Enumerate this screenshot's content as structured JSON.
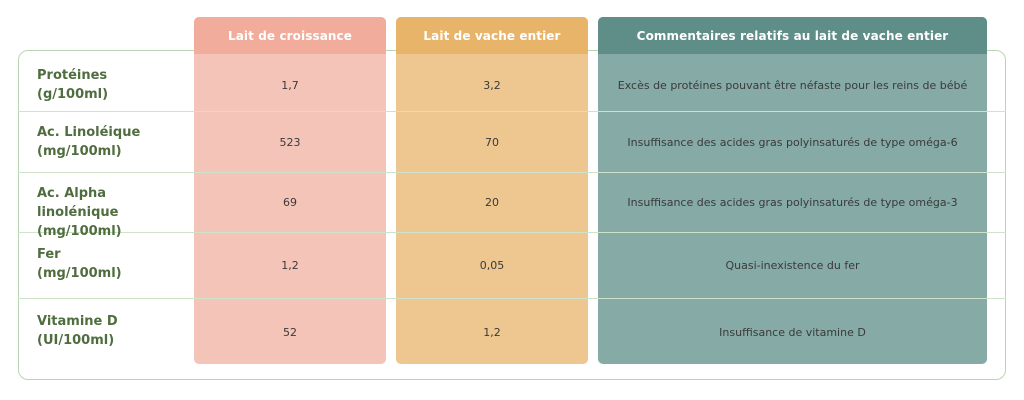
{
  "columns": {
    "a": "Lait de croissance",
    "b": "Lait de vache entier",
    "c": "Commentaires relatifs au lait de vache entier"
  },
  "rows": [
    {
      "label1": "Protéines",
      "label2": "(g/100ml)",
      "a": "1,7",
      "b": "3,2",
      "c": "Excès de protéines pouvant être néfaste pour les reins de bébé"
    },
    {
      "label1": "Ac. Linoléique",
      "label2": "(mg/100ml)",
      "a": "523",
      "b": "70",
      "c": "Insuffisance des acides gras polyinsaturés de type oméga-6"
    },
    {
      "label1": "Ac. Alpha linolénique",
      "label2": "(mg/100ml)",
      "a": "69",
      "b": "20",
      "c": "Insuffisance des acides gras polyinsaturés de type oméga-3"
    },
    {
      "label1": "Fer",
      "label2": "(mg/100ml)",
      "a": "1,2",
      "b": "0,05",
      "c": "Quasi-inexistence du fer"
    },
    {
      "label1": "Vitamine D",
      "label2": "(UI/100ml)",
      "a": "52",
      "b": "1,2",
      "c": "Insuffisance de vitamine D"
    }
  ],
  "colors": {
    "col_a": "#f4c4b9",
    "col_b": "#edc78f",
    "col_c": "#86aaa6",
    "label": "#4f6d3e",
    "border": "#b9d6b2"
  }
}
